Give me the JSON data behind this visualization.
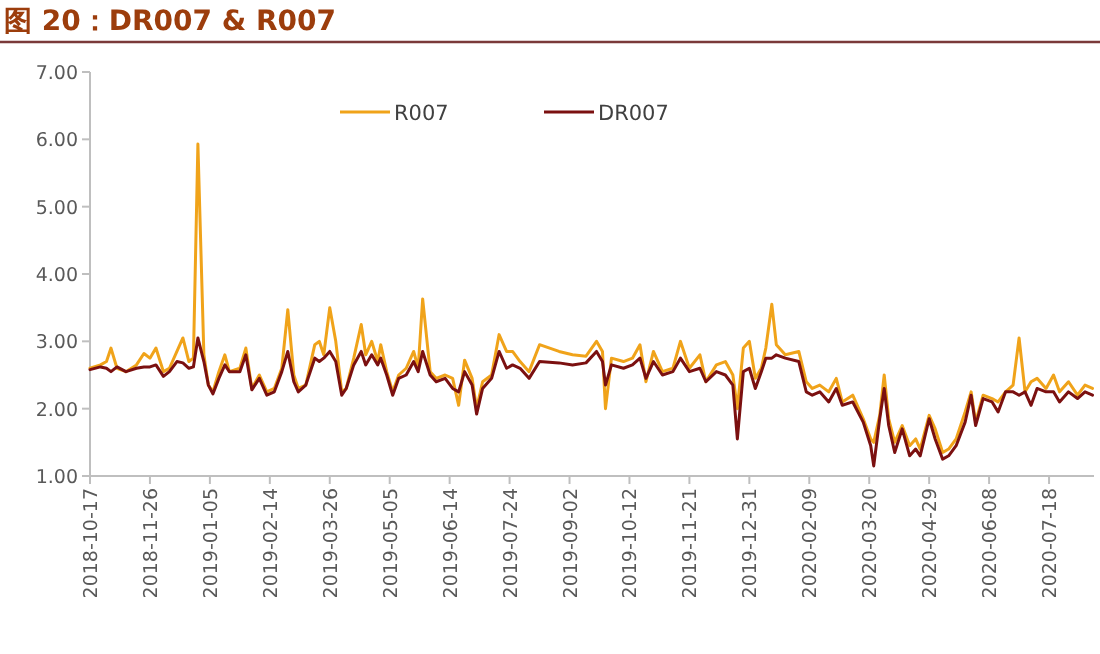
{
  "chart_data": {
    "type": "line",
    "title": "图 20：DR007 & R007",
    "x": [
      "2018-10-17",
      "2018-10-24",
      "2018-10-28",
      "2018-10-31",
      "2018-11-04",
      "2018-11-10",
      "2018-11-17",
      "2018-11-22",
      "2018-11-26",
      "2018-11-30",
      "2018-12-05",
      "2018-12-09",
      "2018-12-14",
      "2018-12-18",
      "2018-12-22",
      "2018-12-25",
      "2018-12-28",
      "2019-01-01",
      "2019-01-04",
      "2019-01-07",
      "2019-01-11",
      "2019-01-15",
      "2019-01-18",
      "2019-01-25",
      "2019-01-29",
      "2019-02-02",
      "2019-02-07",
      "2019-02-12",
      "2019-02-17",
      "2019-02-22",
      "2019-02-26",
      "2019-03-02",
      "2019-03-05",
      "2019-03-10",
      "2019-03-16",
      "2019-03-19",
      "2019-03-22",
      "2019-03-26",
      "2019-03-30",
      "2019-04-03",
      "2019-04-06",
      "2019-04-11",
      "2019-04-16",
      "2019-04-19",
      "2019-04-23",
      "2019-04-27",
      "2019-04-29",
      "2019-05-03",
      "2019-05-07",
      "2019-05-11",
      "2019-05-16",
      "2019-05-21",
      "2019-05-24",
      "2019-05-27",
      "2019-06-01",
      "2019-06-05",
      "2019-06-11",
      "2019-06-16",
      "2019-06-20",
      "2019-06-24",
      "2019-06-29",
      "2019-07-02",
      "2019-07-06",
      "2019-07-12",
      "2019-07-17",
      "2019-07-22",
      "2019-07-26",
      "2019-07-31",
      "2019-08-06",
      "2019-08-13",
      "2019-08-26",
      "2019-09-04",
      "2019-09-13",
      "2019-09-20",
      "2019-09-24",
      "2019-09-26",
      "2019-09-30",
      "2019-10-08",
      "2019-10-14",
      "2019-10-19",
      "2019-10-23",
      "2019-10-28",
      "2019-11-03",
      "2019-11-10",
      "2019-11-15",
      "2019-11-21",
      "2019-11-28",
      "2019-12-02",
      "2019-12-09",
      "2019-12-15",
      "2019-12-20",
      "2019-12-23",
      "2019-12-27",
      "2019-12-31",
      "2020-01-04",
      "2020-01-08",
      "2020-01-11",
      "2020-01-15",
      "2020-01-18",
      "2020-01-24",
      "2020-02-02",
      "2020-02-07",
      "2020-02-11",
      "2020-02-16",
      "2020-02-22",
      "2020-02-27",
      "2020-03-02",
      "2020-03-09",
      "2020-03-16",
      "2020-03-21",
      "2020-03-23",
      "2020-03-27",
      "2020-03-30",
      "2020-04-02",
      "2020-04-06",
      "2020-04-11",
      "2020-04-16",
      "2020-04-20",
      "2020-04-23",
      "2020-04-29",
      "2020-05-03",
      "2020-05-08",
      "2020-05-12",
      "2020-05-17",
      "2020-05-23",
      "2020-05-27",
      "2020-05-30",
      "2020-06-04",
      "2020-06-10",
      "2020-06-14",
      "2020-06-19",
      "2020-06-24",
      "2020-06-28",
      "2020-07-02",
      "2020-07-06",
      "2020-07-10",
      "2020-07-16",
      "2020-07-21",
      "2020-07-25",
      "2020-07-31",
      "2020-08-06",
      "2020-08-11",
      "2020-08-16"
    ],
    "series": [
      {
        "name": "R007",
        "color": "#f0a31a",
        "values": [
          2.6,
          2.65,
          2.7,
          2.9,
          2.6,
          2.55,
          2.65,
          2.82,
          2.75,
          2.9,
          2.55,
          2.6,
          2.85,
          3.05,
          2.7,
          2.75,
          5.93,
          2.8,
          2.35,
          2.25,
          2.55,
          2.8,
          2.55,
          2.6,
          2.9,
          2.3,
          2.5,
          2.25,
          2.3,
          2.6,
          3.47,
          2.5,
          2.3,
          2.35,
          2.95,
          3.0,
          2.8,
          3.5,
          3.0,
          2.25,
          2.3,
          2.75,
          3.25,
          2.8,
          3.0,
          2.7,
          2.95,
          2.55,
          2.25,
          2.5,
          2.6,
          2.85,
          2.6,
          3.63,
          2.55,
          2.45,
          2.5,
          2.45,
          2.05,
          2.72,
          2.45,
          2.0,
          2.4,
          2.5,
          3.1,
          2.85,
          2.85,
          2.7,
          2.55,
          2.95,
          2.85,
          2.8,
          2.78,
          3.0,
          2.85,
          2.0,
          2.75,
          2.7,
          2.75,
          2.95,
          2.4,
          2.85,
          2.55,
          2.6,
          3.0,
          2.6,
          2.8,
          2.4,
          2.65,
          2.7,
          2.5,
          2.0,
          2.9,
          3.0,
          2.45,
          2.6,
          2.9,
          3.55,
          2.95,
          2.8,
          2.85,
          2.4,
          2.3,
          2.35,
          2.25,
          2.45,
          2.1,
          2.2,
          1.85,
          1.55,
          1.5,
          1.9,
          2.5,
          1.85,
          1.5,
          1.75,
          1.45,
          1.55,
          1.4,
          1.9,
          1.7,
          1.35,
          1.4,
          1.55,
          1.95,
          2.25,
          1.8,
          2.2,
          2.15,
          2.1,
          2.25,
          2.35,
          3.05,
          2.25,
          2.4,
          2.45,
          2.3,
          2.5,
          2.25,
          2.4,
          2.2,
          2.35,
          2.3
        ]
      },
      {
        "name": "DR007",
        "color": "#7b1010",
        "values": [
          2.58,
          2.62,
          2.6,
          2.55,
          2.62,
          2.55,
          2.6,
          2.62,
          2.62,
          2.65,
          2.48,
          2.55,
          2.7,
          2.68,
          2.6,
          2.62,
          3.05,
          2.7,
          2.35,
          2.22,
          2.45,
          2.65,
          2.55,
          2.55,
          2.8,
          2.28,
          2.45,
          2.2,
          2.25,
          2.55,
          2.85,
          2.4,
          2.25,
          2.35,
          2.75,
          2.7,
          2.75,
          2.85,
          2.7,
          2.2,
          2.3,
          2.65,
          2.85,
          2.65,
          2.8,
          2.65,
          2.75,
          2.5,
          2.2,
          2.45,
          2.5,
          2.7,
          2.55,
          2.85,
          2.5,
          2.4,
          2.45,
          2.3,
          2.25,
          2.55,
          2.35,
          1.92,
          2.3,
          2.45,
          2.85,
          2.6,
          2.65,
          2.6,
          2.45,
          2.7,
          2.68,
          2.65,
          2.68,
          2.85,
          2.7,
          2.35,
          2.65,
          2.6,
          2.65,
          2.75,
          2.45,
          2.7,
          2.5,
          2.55,
          2.75,
          2.55,
          2.6,
          2.4,
          2.55,
          2.5,
          2.35,
          1.55,
          2.55,
          2.6,
          2.3,
          2.55,
          2.75,
          2.75,
          2.8,
          2.75,
          2.7,
          2.25,
          2.2,
          2.25,
          2.1,
          2.3,
          2.05,
          2.1,
          1.8,
          1.45,
          1.15,
          1.85,
          2.3,
          1.75,
          1.35,
          1.7,
          1.3,
          1.4,
          1.3,
          1.85,
          1.55,
          1.25,
          1.3,
          1.45,
          1.8,
          2.2,
          1.75,
          2.15,
          2.1,
          1.95,
          2.25,
          2.25,
          2.2,
          2.25,
          2.05,
          2.3,
          2.25,
          2.25,
          2.1,
          2.25,
          2.15,
          2.25,
          2.2
        ]
      }
    ],
    "xlim": [
      "2018-10-17",
      "2020-08-17"
    ],
    "xticks": [
      "2018-10-17",
      "2018-11-26",
      "2019-01-05",
      "2019-02-14",
      "2019-03-26",
      "2019-05-05",
      "2019-06-14",
      "2019-07-24",
      "2019-09-02",
      "2019-10-12",
      "2019-11-21",
      "2019-12-31",
      "2020-02-09",
      "2020-03-20",
      "2020-04-29",
      "2020-06-08",
      "2020-07-18"
    ],
    "ylim": [
      1,
      7
    ],
    "yticks": [
      {
        "value": 1,
        "label": "1.00"
      },
      {
        "value": 2,
        "label": "2.00"
      },
      {
        "value": 3,
        "label": "3.00"
      },
      {
        "value": 4,
        "label": "4.00"
      },
      {
        "value": 5,
        "label": "5.00"
      },
      {
        "value": 6,
        "label": "6.00"
      },
      {
        "value": 7,
        "label": "7.00"
      }
    ],
    "grid": false,
    "legend": "top",
    "line_style": "solid",
    "marker": "none"
  }
}
